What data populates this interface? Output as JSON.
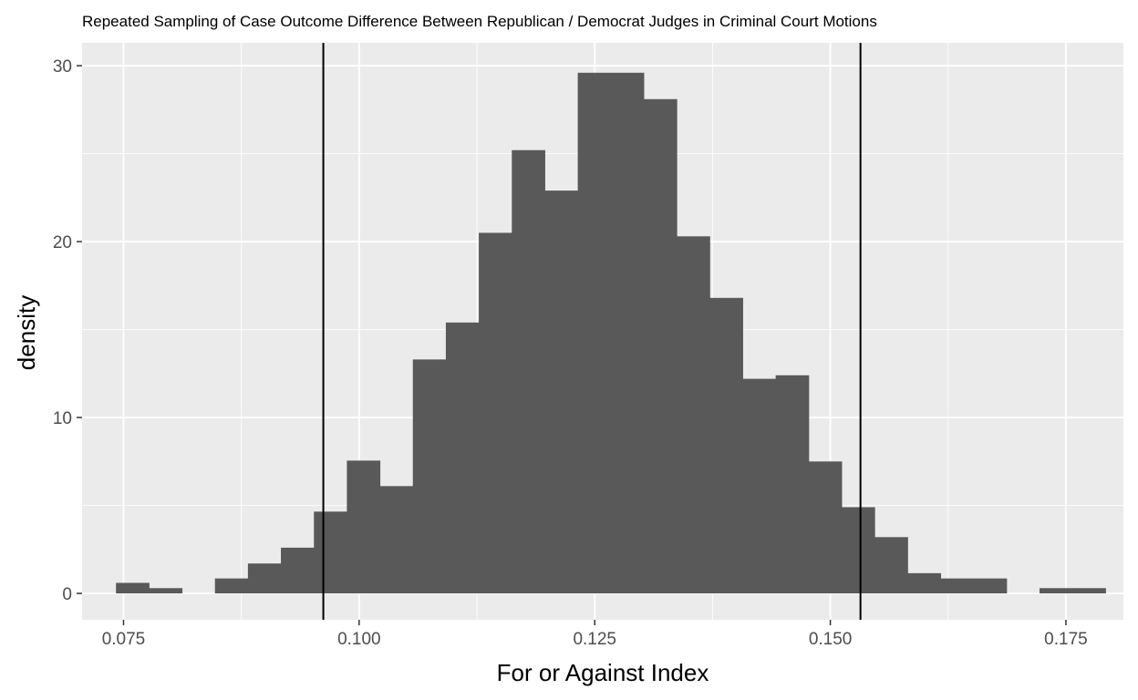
{
  "chart_data": {
    "type": "bar",
    "title": "Repeated Sampling of Case Outcome Difference Between Republican / Democrat Judges in Criminal Court Motions",
    "xlabel": "For or Against Index",
    "ylabel": "density",
    "xlim": [
      0.0706,
      0.1811
    ],
    "ylim": [
      -1.5,
      31.3
    ],
    "x_ticks": [
      0.075,
      0.1,
      0.125,
      0.15,
      0.175
    ],
    "x_tick_labels": [
      "0.075",
      "0.100",
      "0.125",
      "0.150",
      "0.175"
    ],
    "y_ticks": [
      0,
      10,
      20,
      30
    ],
    "y_tick_labels": [
      "0",
      "10",
      "20",
      "30"
    ],
    "bin_width": 0.0035,
    "bin_starts": [
      0.0742,
      0.0777,
      0.0812,
      0.0847,
      0.0882,
      0.0917,
      0.0952,
      0.0987,
      0.1022,
      0.1057,
      0.1092,
      0.1127,
      0.1162,
      0.1197,
      0.1232,
      0.1267,
      0.1302,
      0.1337,
      0.1372,
      0.1407,
      0.1442,
      0.1477,
      0.1512,
      0.1547,
      0.1582,
      0.1617,
      0.1652,
      0.1687,
      0.1722,
      0.1757
    ],
    "values": [
      0.6,
      0.3,
      0.0,
      0.85,
      1.7,
      2.6,
      4.65,
      7.55,
      6.1,
      13.3,
      15.4,
      20.5,
      25.2,
      22.9,
      29.6,
      29.6,
      28.1,
      20.3,
      16.8,
      12.2,
      12.4,
      7.5,
      4.9,
      3.2,
      1.15,
      0.85,
      0.85,
      0.0,
      0.3,
      0.3
    ],
    "vlines": [
      0.0962,
      0.1532
    ],
    "grid": true,
    "colors": {
      "panel_background": "#EBEBEB",
      "grid_line": "#FFFFFF",
      "bar_fill": "#595959",
      "vline": "#000000",
      "tick_mark": "#333333",
      "tick_label": "#4D4D4D"
    }
  }
}
